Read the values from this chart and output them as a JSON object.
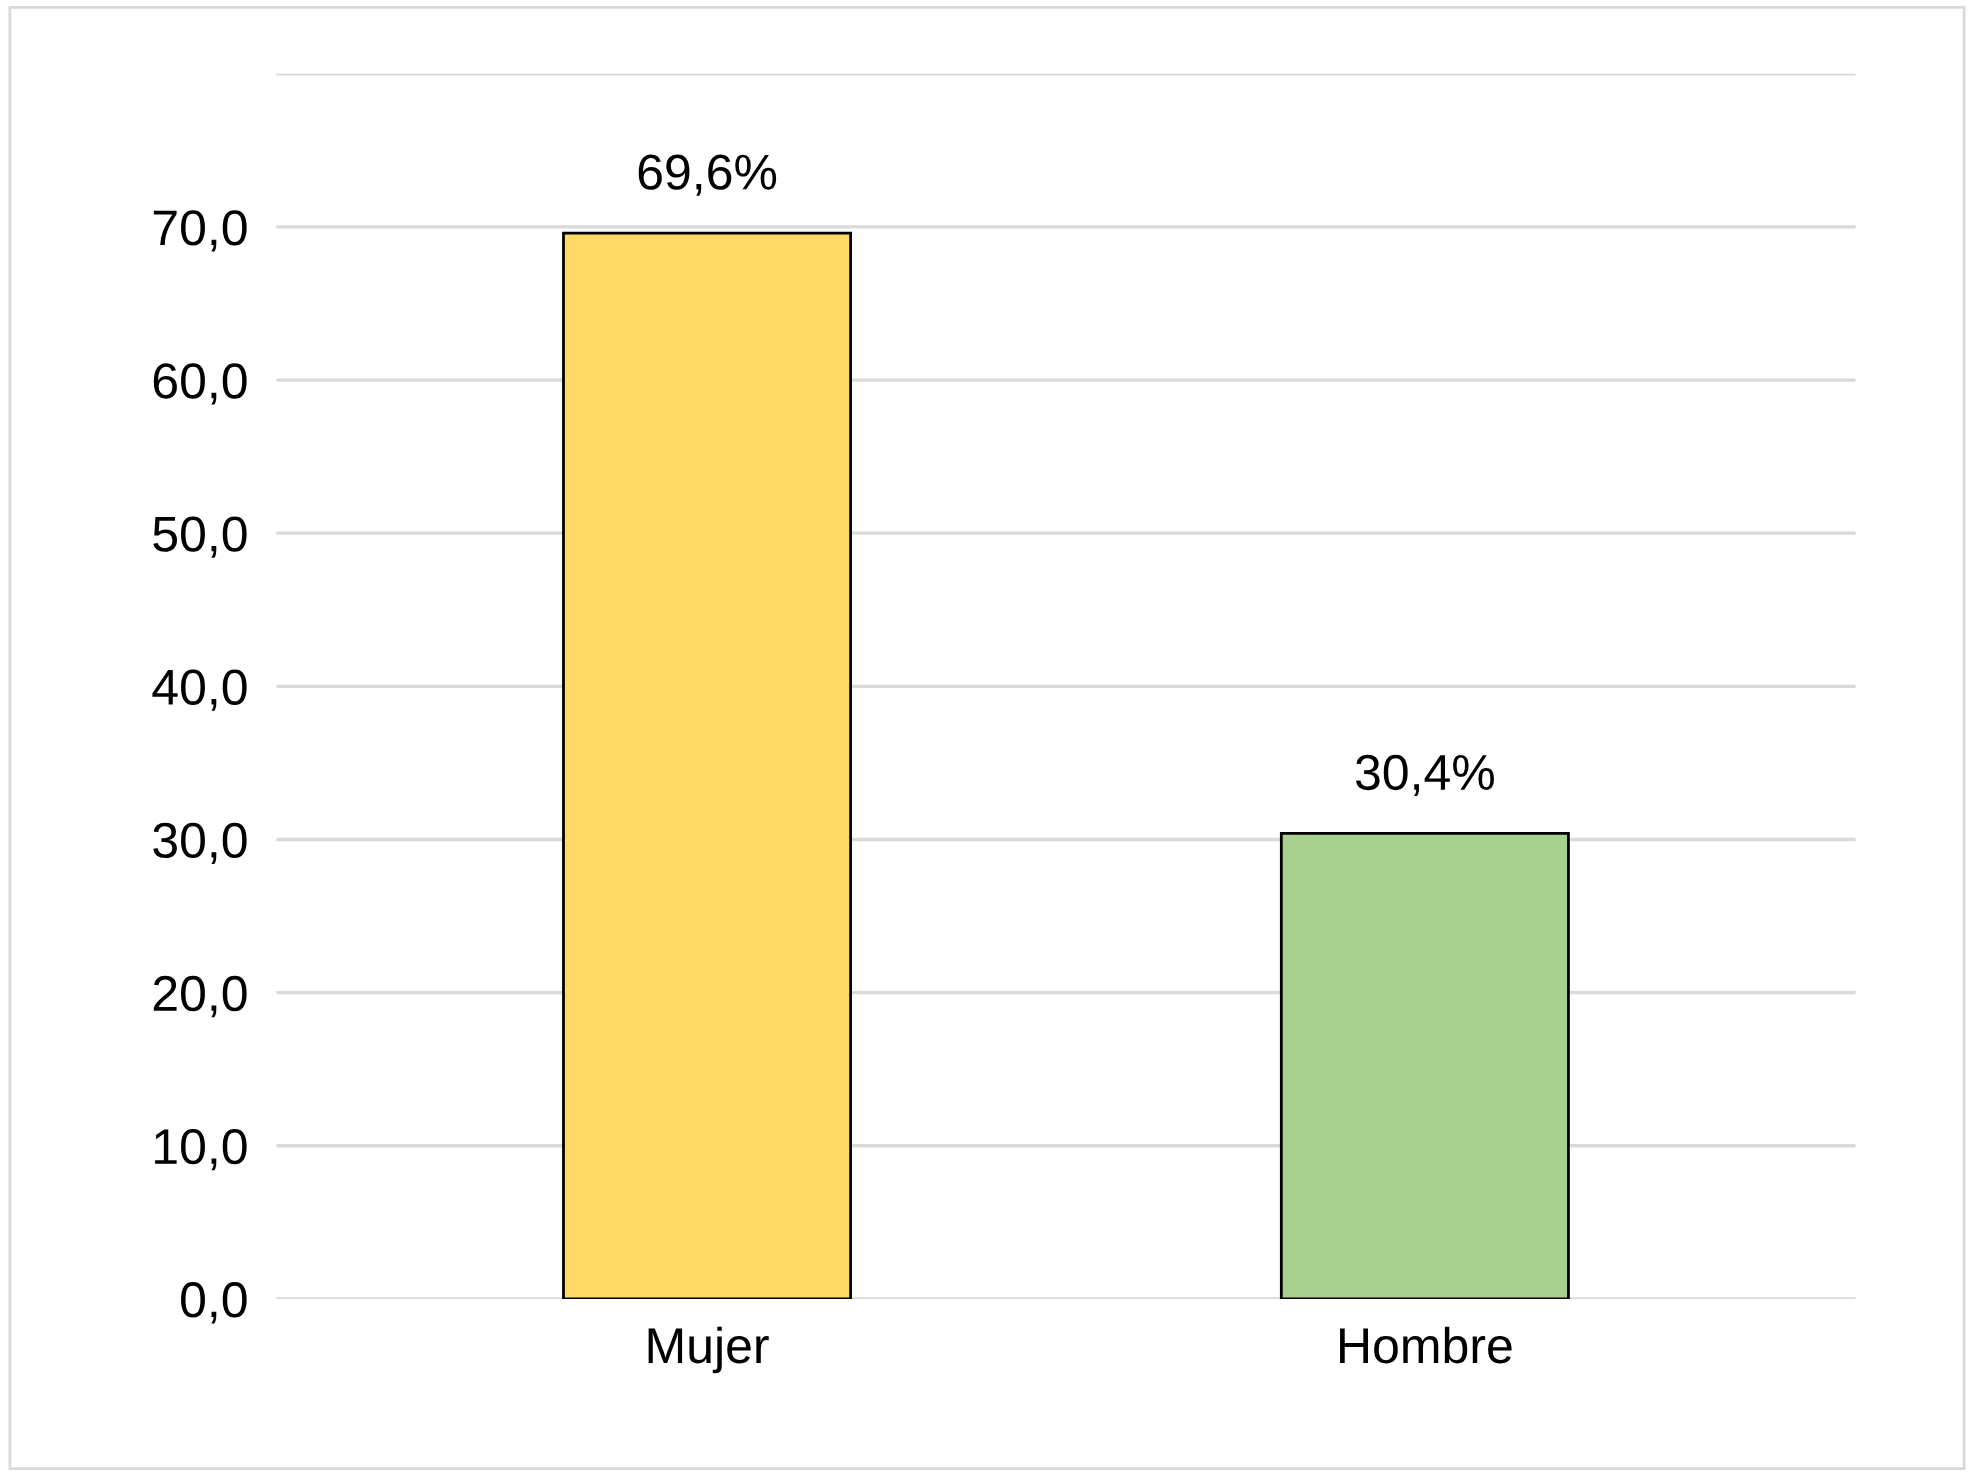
{
  "chart_data": {
    "type": "bar",
    "categories": [
      "Mujer",
      "Hombre"
    ],
    "values": [
      69.6,
      30.4
    ],
    "colors": [
      "#ffd966",
      "#a9d18e"
    ],
    "value_labels": [
      "69,6%",
      "30,4%"
    ],
    "ylim": [
      0,
      80
    ],
    "yticks": [
      {
        "value": 0,
        "label": "0,0"
      },
      {
        "value": 10,
        "label": "10,0"
      },
      {
        "value": 20,
        "label": "20,0"
      },
      {
        "value": 30,
        "label": "30,0"
      },
      {
        "value": 40,
        "label": "40,0"
      },
      {
        "value": 50,
        "label": "50,0"
      },
      {
        "value": 60,
        "label": "60,0"
      },
      {
        "value": 70,
        "label": "70,0"
      },
      {
        "value": 80,
        "label": null
      }
    ],
    "grid": "y",
    "legend": false
  }
}
